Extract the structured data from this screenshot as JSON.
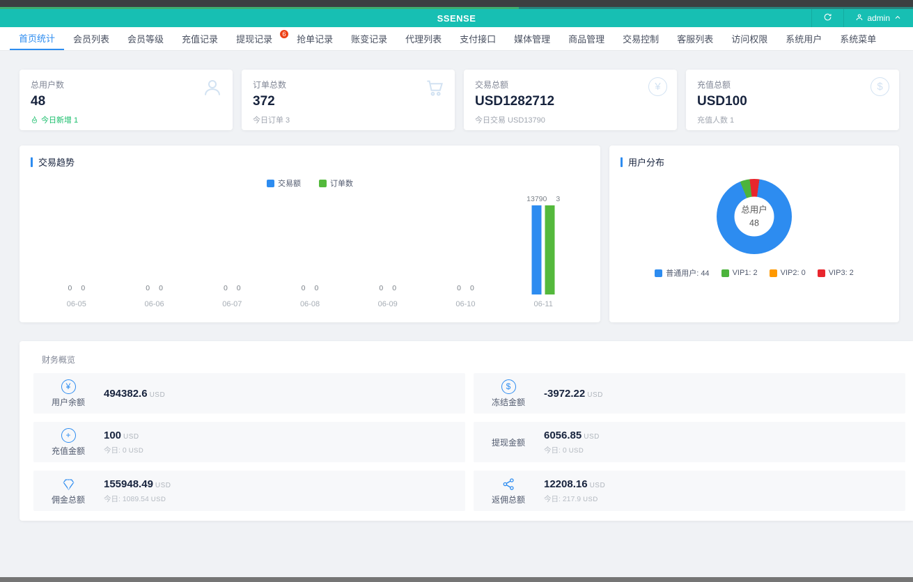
{
  "titlebar": {
    "progress_color": "#3fae6e"
  },
  "header": {
    "title": "SSENSE",
    "user": "admin"
  },
  "nav": {
    "tabs": [
      {
        "label": "首页统计",
        "active": true
      },
      {
        "label": "会员列表"
      },
      {
        "label": "会员等级"
      },
      {
        "label": "充值记录"
      },
      {
        "label": "提现记录",
        "badge": "6"
      },
      {
        "label": "抢单记录"
      },
      {
        "label": "账变记录"
      },
      {
        "label": "代理列表"
      },
      {
        "label": "支付接口"
      },
      {
        "label": "媒体管理"
      },
      {
        "label": "商品管理"
      },
      {
        "label": "交易控制"
      },
      {
        "label": "客服列表"
      },
      {
        "label": "访问权限"
      },
      {
        "label": "系统用户"
      },
      {
        "label": "系统菜单"
      }
    ]
  },
  "stat_cards": [
    {
      "label": "总用户数",
      "value": "48",
      "sub": "今日新增 1",
      "sub_style": "success",
      "sub_icon": "flame-icon",
      "icon": "user-icon"
    },
    {
      "label": "订单总数",
      "value": "372",
      "sub": "今日订单 3",
      "icon": "cart-icon"
    },
    {
      "label": "交易总额",
      "value": "USD1282712",
      "sub": "今日交易 USD13790",
      "icon": "yen-circle-icon"
    },
    {
      "label": "充值总额",
      "value": "USD100",
      "sub": "充值人数 1",
      "icon": "dollar-circle-icon"
    }
  ],
  "chart_data": [
    {
      "type": "bar",
      "title": "交易趋势",
      "categories": [
        "06-05",
        "06-06",
        "06-07",
        "06-08",
        "06-09",
        "06-10",
        "06-11"
      ],
      "series": [
        {
          "name": "交易额",
          "color": "#2d8cf0",
          "values": [
            0,
            0,
            0,
            0,
            0,
            0,
            13790
          ]
        },
        {
          "name": "订单数",
          "color": "#54b93c",
          "values": [
            0,
            0,
            0,
            0,
            0,
            0,
            3
          ]
        }
      ],
      "legend_position": "top",
      "value_labels": true,
      "grid": false
    },
    {
      "type": "donut",
      "title": "用户分布",
      "center_label": "总用户",
      "center_value": "48",
      "start_angle_deg": 8,
      "slices": [
        {
          "name": "普通用户",
          "value": 44,
          "legend": "普通用户: 44",
          "color": "#2d8cf0"
        },
        {
          "name": "VIP1",
          "value": 2,
          "legend": "VIP1: 2",
          "color": "#4cb43c"
        },
        {
          "name": "VIP2",
          "value": 0,
          "legend": "VIP2: 0",
          "color": "#ff9900"
        },
        {
          "name": "VIP3",
          "value": 2,
          "legend": "VIP3: 2",
          "color": "#e8262d"
        }
      ],
      "legend_position": "bottom"
    }
  ],
  "finance": {
    "title": "财务概览",
    "currency": "USD",
    "today_prefix": "今日:",
    "rows": [
      {
        "label": "用户余额",
        "value": "494382.6",
        "icon": "yen-circle-icon"
      },
      {
        "label": "冻结金额",
        "value": "-3972.22",
        "icon": "dollar-circle-icon"
      },
      {
        "label": "充值金额",
        "value": "100",
        "today": "0",
        "icon": "plus-circle-icon"
      },
      {
        "label": "提现金额",
        "value": "6056.85",
        "today": "0",
        "icon": null
      },
      {
        "label": "佣金总额",
        "value": "155948.49",
        "today": "1089.54",
        "icon": "gem-icon"
      },
      {
        "label": "返佣总额",
        "value": "12208.16",
        "today": "217.9",
        "icon": "share-icon"
      }
    ]
  }
}
